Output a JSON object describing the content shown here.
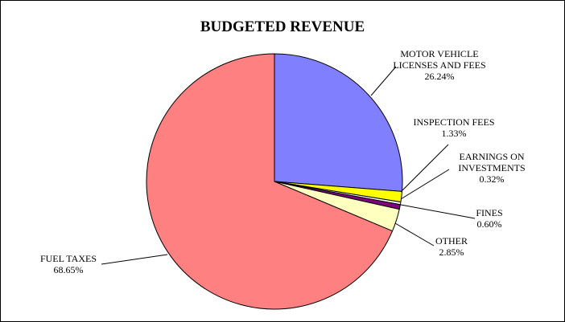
{
  "chart_data": {
    "type": "pie",
    "title": "BUDGETED REVENUE",
    "slices": [
      {
        "label_lines": [
          "MOTOR VEHICLE",
          "LICENSES AND FEES"
        ],
        "percent_text": "26.24%",
        "value": 26.24,
        "color": "#8080ff",
        "key": "motor-vehicle"
      },
      {
        "label_lines": [
          "INSPECTION FEES"
        ],
        "percent_text": "1.33%",
        "value": 1.33,
        "color": "#ffff00",
        "key": "inspection-fees"
      },
      {
        "label_lines": [
          "EARNINGS ON",
          "INVESTMENTS"
        ],
        "percent_text": "0.32%",
        "value": 0.32,
        "color": "#ffffff",
        "key": "earnings-on-investments"
      },
      {
        "label_lines": [
          "FINES"
        ],
        "percent_text": "0.60%",
        "value": 0.6,
        "color": "#800080",
        "key": "fines"
      },
      {
        "label_lines": [
          "OTHER"
        ],
        "percent_text": "2.85%",
        "value": 2.85,
        "color": "#ffffc0",
        "key": "other"
      },
      {
        "label_lines": [
          "FUEL TAXES"
        ],
        "percent_text": "68.65%",
        "value": 68.65,
        "color": "#ff8080",
        "key": "fuel-taxes"
      }
    ],
    "start": "12 o'clock",
    "direction": "clockwise",
    "legend": "none"
  }
}
